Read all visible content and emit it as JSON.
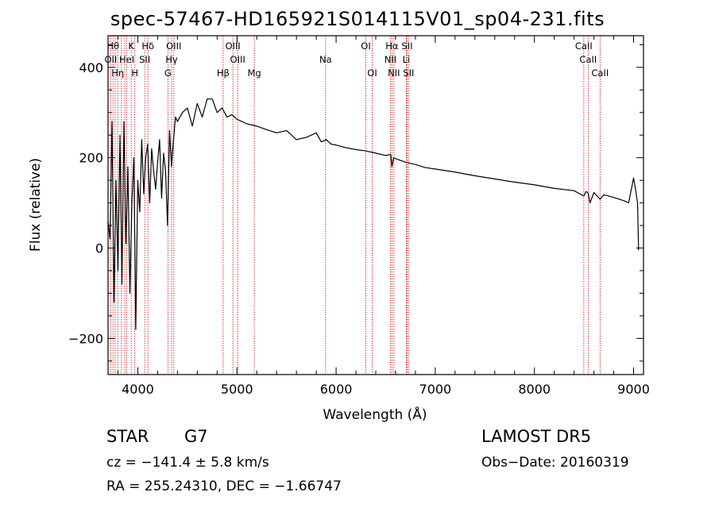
{
  "chart_data": {
    "type": "line",
    "title": "spec-57467-HD165921S014115V01_sp04-231.fits",
    "xlabel": "Wavelength (Å)",
    "ylabel": "Flux (relative)",
    "xlim": [
      3700,
      9100
    ],
    "ylim": [
      -280,
      470
    ],
    "xticks": [
      4000,
      5000,
      6000,
      7000,
      8000,
      9000
    ],
    "yticks": [
      -200,
      0,
      200,
      400
    ],
    "line_color": "#000000",
    "marker_color": "#cc0000",
    "series": [
      {
        "x": [
          3700,
          3720,
          3740,
          3760,
          3780,
          3800,
          3820,
          3840,
          3860,
          3880,
          3900,
          3920,
          3940,
          3960,
          3980,
          4000,
          4020,
          4040,
          4060,
          4080,
          4100,
          4120,
          4140,
          4160,
          4180,
          4200,
          4220,
          4240,
          4260,
          4280,
          4300,
          4320,
          4340,
          4360,
          4380,
          4400,
          4450,
          4500,
          4550,
          4600,
          4650,
          4700,
          4750,
          4800,
          4850,
          4900,
          4950,
          5000,
          5100,
          5200,
          5300,
          5400,
          5500,
          5600,
          5700,
          5800,
          5850,
          5900,
          5950,
          6000,
          6100,
          6200,
          6300,
          6400,
          6500,
          6550,
          6563,
          6580,
          6600,
          6700,
          6800,
          6900,
          7000,
          7200,
          7400,
          7600,
          7800,
          8000,
          8200,
          8400,
          8498,
          8520,
          8542,
          8560,
          8600,
          8662,
          8700,
          8800,
          8900,
          8950,
          9000,
          9020,
          9040,
          9050
        ],
        "y": [
          60,
          20,
          280,
          -120,
          150,
          -50,
          250,
          -80,
          280,
          10,
          180,
          -100,
          100,
          200,
          -180,
          150,
          80,
          240,
          120,
          200,
          230,
          100,
          220,
          170,
          130,
          190,
          240,
          110,
          210,
          170,
          50,
          260,
          180,
          240,
          290,
          280,
          300,
          310,
          270,
          320,
          290,
          330,
          330,
          300,
          310,
          290,
          295,
          285,
          275,
          270,
          262,
          255,
          260,
          240,
          245,
          255,
          235,
          240,
          230,
          228,
          222,
          218,
          215,
          210,
          205,
          207,
          180,
          200,
          198,
          190,
          185,
          178,
          175,
          168,
          160,
          153,
          146,
          140,
          132,
          127,
          115,
          125,
          122,
          100,
          123,
          108,
          118,
          112,
          105,
          100,
          155,
          130,
          100,
          -5
        ]
      }
    ],
    "lines": [
      {
        "x": 3727,
        "label": "OII"
      },
      {
        "x": 3750,
        "label": "Hθ"
      },
      {
        "x": 3771,
        "label": "Hη"
      },
      {
        "x": 3798,
        "label": "Hη"
      },
      {
        "x": 3835,
        "label": "Hη"
      },
      {
        "x": 3869,
        "label": "HeI"
      },
      {
        "x": 3889,
        "label": "HeI"
      },
      {
        "x": 3934,
        "label": "K"
      },
      {
        "x": 3970,
        "label": "H"
      },
      {
        "x": 4070,
        "label": "SII"
      },
      {
        "x": 4102,
        "label": "Hδ"
      },
      {
        "x": 4304,
        "label": "G"
      },
      {
        "x": 4341,
        "label": "Hγ"
      },
      {
        "x": 4363,
        "label": "OIII"
      },
      {
        "x": 4861,
        "label": "Hβ"
      },
      {
        "x": 4959,
        "label": "OIII"
      },
      {
        "x": 5007,
        "label": "OIII"
      },
      {
        "x": 5175,
        "label": "Mg"
      },
      {
        "x": 5894,
        "label": "Na"
      },
      {
        "x": 6300,
        "label": "OI"
      },
      {
        "x": 6364,
        "label": "OI"
      },
      {
        "x": 6548,
        "label": "NII"
      },
      {
        "x": 6563,
        "label": "Hα"
      },
      {
        "x": 6583,
        "label": "NII"
      },
      {
        "x": 6708,
        "label": "Li"
      },
      {
        "x": 6716,
        "label": "SII"
      },
      {
        "x": 6731,
        "label": "SII"
      },
      {
        "x": 8498,
        "label": "CaII"
      },
      {
        "x": 8542,
        "label": "CaII"
      },
      {
        "x": 8662,
        "label": "CaII"
      }
    ],
    "line_labels": [
      {
        "text": "Hθ",
        "wl": 3750,
        "row": 0
      },
      {
        "text": "K",
        "wl": 3934,
        "row": 0
      },
      {
        "text": "Hδ",
        "wl": 4102,
        "row": 0
      },
      {
        "text": "OIII",
        "wl": 4363,
        "row": 0
      },
      {
        "text": "OIII",
        "wl": 4959,
        "row": 0
      },
      {
        "text": "OI",
        "wl": 6300,
        "row": 0
      },
      {
        "text": "Hα",
        "wl": 6563,
        "row": 0
      },
      {
        "text": "SII",
        "wl": 6716,
        "row": 0
      },
      {
        "text": "CaII",
        "wl": 8498,
        "row": 0
      },
      {
        "text": "OII",
        "wl": 3727,
        "row": 1
      },
      {
        "text": "HeI",
        "wl": 3889,
        "row": 1
      },
      {
        "text": "SII",
        "wl": 4070,
        "row": 1
      },
      {
        "text": "Hγ",
        "wl": 4341,
        "row": 1
      },
      {
        "text": "OIII",
        "wl": 5007,
        "row": 1
      },
      {
        "text": "Na",
        "wl": 5894,
        "row": 1
      },
      {
        "text": "NII",
        "wl": 6548,
        "row": 1
      },
      {
        "text": "Li",
        "wl": 6708,
        "row": 1
      },
      {
        "text": "CaII",
        "wl": 8542,
        "row": 1
      },
      {
        "text": "Hη",
        "wl": 3798,
        "row": 2
      },
      {
        "text": "H",
        "wl": 3970,
        "row": 2
      },
      {
        "text": "G",
        "wl": 4304,
        "row": 2
      },
      {
        "text": "Hβ",
        "wl": 4861,
        "row": 2
      },
      {
        "text": "Mg",
        "wl": 5175,
        "row": 2
      },
      {
        "text": "OI",
        "wl": 6364,
        "row": 2
      },
      {
        "text": "NII",
        "wl": 6583,
        "row": 2
      },
      {
        "text": "SII",
        "wl": 6731,
        "row": 2
      },
      {
        "text": "CaII",
        "wl": 8662,
        "row": 2
      }
    ]
  },
  "info": {
    "obj_class": "STAR",
    "subclass": "G7",
    "survey": "LAMOST DR5",
    "cz": "cz = −141.4 ± 5.8 km/s",
    "obs_date": "Obs−Date: 20160319",
    "radec": "RA = 255.24310, DEC =  −1.66747"
  }
}
